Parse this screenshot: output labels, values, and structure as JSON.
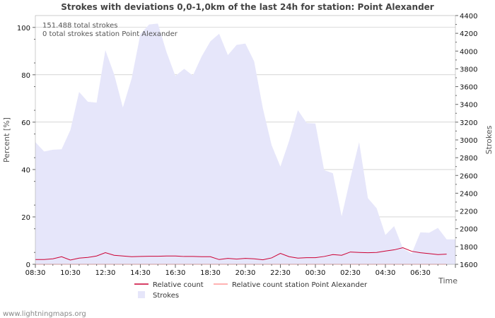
{
  "chart_data": {
    "type": "area+line",
    "title": "Strokes with deviations 0,0-1,0km of the last 24h for station: Point Alexander",
    "xlabel": "Time",
    "ylabel_left": "Percent   [%]",
    "ylabel_right": "Strokes",
    "y_left_lim": [
      0,
      105
    ],
    "y_left_ticks": [
      0,
      20,
      40,
      60,
      80,
      100
    ],
    "y_right_lim": [
      1600,
      4400
    ],
    "y_right_ticks": [
      1600,
      1800,
      2000,
      2200,
      2400,
      2600,
      2800,
      3000,
      3200,
      3400,
      3600,
      3800,
      4000,
      4200,
      4400
    ],
    "x_start": "08:30",
    "x_step_minutes": 30,
    "x_tick_labels": [
      "08:30",
      "10:30",
      "12:30",
      "14:30",
      "16:30",
      "18:30",
      "20:30",
      "22:30",
      "00:30",
      "02:30",
      "04:30",
      "06:30"
    ],
    "annotations": [
      "151.488 total strokes",
      "0 total strokes station Point Alexander"
    ],
    "series": [
      {
        "name": "Strokes",
        "axis": "right",
        "color": "#e6e6fa",
        "values": [
          2975,
          2870,
          2890,
          2895,
          3110,
          3540,
          3430,
          3420,
          4010,
          3740,
          3365,
          3690,
          4190,
          4300,
          4310,
          3985,
          3720,
          3800,
          3725,
          3940,
          4110,
          4195,
          3955,
          4070,
          4085,
          3885,
          3355,
          2940,
          2700,
          2990,
          3335,
          3190,
          3185,
          2660,
          2625,
          2140,
          2570,
          2975,
          2345,
          2230,
          1930,
          2030,
          1780,
          1720,
          1960,
          1955,
          2010,
          1880
        ]
      },
      {
        "name": "Relative count",
        "axis": "left",
        "color": "#cc0033",
        "values": [
          2.0,
          2.0,
          2.3,
          3.2,
          1.8,
          2.6,
          2.9,
          3.5,
          4.9,
          3.8,
          3.5,
          3.2,
          3.3,
          3.4,
          3.4,
          3.5,
          3.5,
          3.3,
          3.3,
          3.2,
          3.2,
          2.0,
          2.5,
          2.2,
          2.5,
          2.3,
          1.9,
          2.7,
          4.6,
          3.2,
          2.6,
          2.8,
          2.8,
          3.3,
          4.1,
          3.8,
          5.2,
          5.0,
          4.9,
          5.0,
          5.6,
          6.1,
          7.0,
          5.5,
          4.9,
          4.5,
          4.1,
          4.3
        ]
      },
      {
        "name": "Relative count station Point Alexander",
        "axis": "left",
        "color": "#ff9999",
        "values": [
          0,
          0,
          0,
          0,
          0,
          0,
          0,
          0,
          0,
          0,
          0,
          0,
          0,
          0,
          0,
          0,
          0,
          0,
          0,
          0,
          0,
          0,
          0,
          0,
          0,
          0,
          0,
          0,
          0,
          0,
          0,
          0,
          0,
          0,
          0,
          0,
          0,
          0,
          0,
          0,
          0,
          0,
          0,
          0,
          0,
          0,
          0,
          0
        ]
      }
    ],
    "legend": [
      {
        "label": "Relative count",
        "style": "line",
        "color": "#cc0033"
      },
      {
        "label": "Relative count station Point Alexander",
        "style": "line",
        "color": "#ff9999"
      },
      {
        "label": "Strokes",
        "style": "box",
        "color": "#e6e6fa"
      }
    ],
    "legend_position": "bottom",
    "grid": true
  },
  "credit": "www.lightningmaps.org"
}
